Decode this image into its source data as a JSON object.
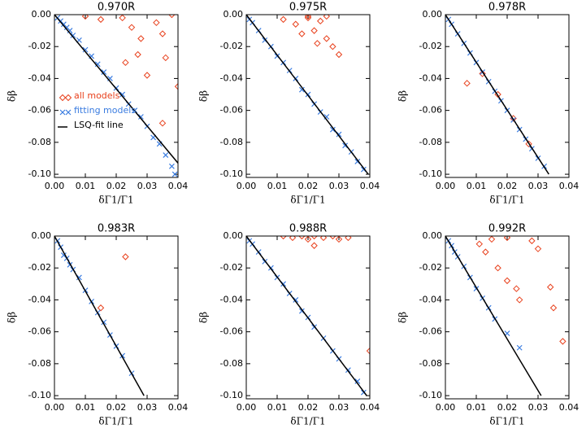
{
  "chart_data": [
    {
      "type": "scatter",
      "title": "0.970R",
      "x_label": "δΓ1/Γ1",
      "y_label": "δβ",
      "legend": "center left",
      "xlim": [
        0,
        0.04
      ],
      "ylim": [
        -0.102,
        0
      ],
      "xticks": [
        {
          "value": 0,
          "label": "0.00"
        },
        0.01,
        0.02,
        0.03,
        0.04
      ],
      "yticks": [
        {
          "value": 0,
          "label": "0.00"
        },
        -0.02,
        -0.04,
        -0.06,
        -0.08,
        {
          "value": -0.1,
          "label": "-0.10"
        }
      ],
      "series": [
        {
          "name": "all models",
          "color": "#e8401c",
          "marker": "diamond",
          "x": [
            0.01,
            0.015,
            0.022,
            0.025,
            0.028,
            0.027,
            0.03,
            0.033,
            0.035,
            0.036,
            0.038,
            0.023,
            0.035,
            0.04
          ],
          "values": [
            -0.001,
            -0.003,
            -0.002,
            -0.008,
            -0.015,
            -0.025,
            -0.038,
            -0.005,
            -0.012,
            -0.027,
            0,
            -0.03,
            -0.068,
            -0.045
          ]
        },
        {
          "name": "fitting models",
          "color": "#3a7ce0",
          "marker": "x",
          "x": [
            0.001,
            0.002,
            0.003,
            0.004,
            0.005,
            0.006,
            0.008,
            0.01,
            0.012,
            0.014,
            0.016,
            0.018,
            0.02,
            0.022,
            0.024,
            0.026,
            0.028,
            0.03,
            0.032,
            0.034,
            0.036,
            0.038,
            0.039
          ],
          "values": [
            -0.002,
            -0.004,
            -0.006,
            -0.008,
            -0.01,
            -0.013,
            -0.016,
            -0.022,
            -0.026,
            -0.031,
            -0.036,
            -0.04,
            -0.046,
            -0.05,
            -0.056,
            -0.06,
            -0.064,
            -0.07,
            -0.077,
            -0.081,
            -0.088,
            -0.095,
            -0.1
          ]
        },
        {
          "name": "LSQ-fit line",
          "color": "#000000",
          "marker": "line",
          "x": [
            0,
            0.04
          ],
          "values": [
            0,
            -0.093
          ]
        }
      ]
    },
    {
      "type": "scatter",
      "title": "0.975R",
      "x_label": "δΓ1/Γ1",
      "y_label": "δβ",
      "xlim": [
        0,
        0.04
      ],
      "ylim": [
        -0.102,
        0
      ],
      "xticks": [
        {
          "value": 0,
          "label": "0.00"
        },
        0.01,
        0.02,
        0.03,
        0.04
      ],
      "yticks": [
        {
          "value": 0,
          "label": "0.00"
        },
        -0.02,
        -0.04,
        -0.06,
        -0.08,
        {
          "value": -0.1,
          "label": "-0.10"
        }
      ],
      "series": [
        {
          "color": "#e8401c",
          "marker": "diamond",
          "x": [
            0.012,
            0.016,
            0.02,
            0.022,
            0.024,
            0.026,
            0.018,
            0.028,
            0.03,
            0.023,
            0.02,
            0.026
          ],
          "values": [
            -0.003,
            -0.006,
            -0.002,
            -0.01,
            -0.004,
            -0.015,
            -0.012,
            -0.02,
            -0.025,
            -0.018,
            -0.001,
            -0.001
          ]
        },
        {
          "color": "#3a7ce0",
          "marker": "x",
          "x": [
            0.001,
            0.002,
            0.004,
            0.006,
            0.008,
            0.01,
            0.012,
            0.014,
            0.016,
            0.018,
            0.02,
            0.022,
            0.024,
            0.026,
            0.028,
            0.03,
            0.032,
            0.034,
            0.036,
            0.038
          ],
          "values": [
            -0.003,
            -0.005,
            -0.01,
            -0.016,
            -0.02,
            -0.026,
            -0.03,
            -0.035,
            -0.04,
            -0.047,
            -0.05,
            -0.056,
            -0.061,
            -0.064,
            -0.072,
            -0.075,
            -0.082,
            -0.086,
            -0.092,
            -0.097
          ]
        },
        {
          "color": "#000000",
          "marker": "line",
          "x": [
            0,
            0.0395
          ],
          "values": [
            0,
            -0.1
          ]
        }
      ]
    },
    {
      "type": "scatter",
      "title": "0.978R",
      "x_label": "δΓ1/Γ1",
      "y_label": "δβ",
      "xlim": [
        0,
        0.04
      ],
      "ylim": [
        -0.102,
        0
      ],
      "xticks": [
        {
          "value": 0,
          "label": "0.00"
        },
        0.01,
        0.02,
        0.03,
        0.04
      ],
      "yticks": [
        {
          "value": 0,
          "label": "0.00"
        },
        -0.02,
        -0.04,
        -0.06,
        -0.08,
        {
          "value": -0.1,
          "label": "-0.10"
        }
      ],
      "series": [
        {
          "color": "#e8401c",
          "marker": "diamond",
          "x": [
            0.007,
            0.012,
            0.017,
            0.022,
            0.027
          ],
          "values": [
            -0.043,
            -0.037,
            -0.05,
            -0.065,
            -0.081
          ]
        },
        {
          "color": "#3a7ce0",
          "marker": "x",
          "x": [
            0.001,
            0.002,
            0.004,
            0.006,
            0.008,
            0.01,
            0.012,
            0.014,
            0.016,
            0.018,
            0.02,
            0.022,
            0.024,
            0.026,
            0.028,
            0.03,
            0.032
          ],
          "values": [
            -0.003,
            -0.006,
            -0.012,
            -0.018,
            -0.024,
            -0.03,
            -0.036,
            -0.042,
            -0.048,
            -0.054,
            -0.06,
            -0.066,
            -0.072,
            -0.078,
            -0.084,
            -0.09,
            -0.095
          ]
        },
        {
          "color": "#000000",
          "marker": "line",
          "x": [
            0,
            0.0335
          ],
          "values": [
            0,
            -0.1
          ]
        }
      ]
    },
    {
      "type": "scatter",
      "title": "0.983R",
      "x_label": "δΓ1/Γ1",
      "y_label": "δβ",
      "xlim": [
        0,
        0.04
      ],
      "ylim": [
        -0.102,
        0
      ],
      "xticks": [
        {
          "value": 0,
          "label": "0.00"
        },
        0.01,
        0.02,
        0.03,
        0.04
      ],
      "yticks": [
        {
          "value": 0,
          "label": "0.00"
        },
        -0.02,
        -0.04,
        -0.06,
        -0.08,
        {
          "value": -0.1,
          "label": "-0.10"
        }
      ],
      "series": [
        {
          "color": "#e8401c",
          "marker": "diamond",
          "x": [
            0.023,
            0.015
          ],
          "values": [
            -0.013,
            -0.045
          ]
        },
        {
          "color": "#3a7ce0",
          "marker": "x",
          "x": [
            0.001,
            0.002,
            0.003,
            0.004,
            0.005,
            0.006,
            0.008,
            0.01,
            0.012,
            0.014,
            0.016,
            0.018,
            0.02,
            0.022,
            0.025
          ],
          "values": [
            -0.003,
            -0.007,
            -0.012,
            -0.014,
            -0.018,
            -0.021,
            -0.026,
            -0.034,
            -0.041,
            -0.048,
            -0.054,
            -0.062,
            -0.069,
            -0.075,
            -0.086
          ]
        },
        {
          "color": "#000000",
          "marker": "line",
          "x": [
            0,
            0.029
          ],
          "values": [
            0,
            -0.1
          ]
        }
      ]
    },
    {
      "type": "scatter",
      "title": "0.988R",
      "x_label": "δΓ1/Γ1",
      "y_label": "δβ",
      "xlim": [
        0,
        0.04
      ],
      "ylim": [
        -0.102,
        0
      ],
      "xticks": [
        {
          "value": 0,
          "label": "0.00"
        },
        0.01,
        0.02,
        0.03,
        0.04
      ],
      "yticks": [
        {
          "value": 0,
          "label": "0.00"
        },
        -0.02,
        -0.04,
        -0.06,
        -0.08,
        {
          "value": -0.1,
          "label": "-0.10"
        }
      ],
      "series": [
        {
          "color": "#e8401c",
          "marker": "diamond",
          "x": [
            0.012,
            0.015,
            0.018,
            0.02,
            0.022,
            0.025,
            0.028,
            0.03,
            0.033,
            0.04,
            0.022
          ],
          "values": [
            0,
            -0.001,
            0,
            -0.002,
            0,
            -0.001,
            0,
            -0.002,
            -0.001,
            -0.072,
            -0.006
          ]
        },
        {
          "color": "#3a7ce0",
          "marker": "x",
          "x": [
            0.001,
            0.002,
            0.004,
            0.006,
            0.008,
            0.01,
            0.012,
            0.014,
            0.016,
            0.018,
            0.02,
            0.022,
            0.025,
            0.028,
            0.03,
            0.033,
            0.036,
            0.038
          ],
          "values": [
            -0.003,
            -0.005,
            -0.01,
            -0.016,
            -0.02,
            -0.026,
            -0.03,
            -0.036,
            -0.04,
            -0.047,
            -0.051,
            -0.057,
            -0.064,
            -0.072,
            -0.077,
            -0.084,
            -0.091,
            -0.098
          ]
        },
        {
          "color": "#000000",
          "marker": "line",
          "x": [
            0,
            0.039
          ],
          "values": [
            0,
            -0.1
          ]
        }
      ]
    },
    {
      "type": "scatter",
      "title": "0.992R",
      "x_label": "δΓ1/Γ1",
      "y_label": "δβ",
      "xlim": [
        0,
        0.04
      ],
      "ylim": [
        -0.102,
        0
      ],
      "xticks": [
        {
          "value": 0,
          "label": "0.00"
        },
        0.01,
        0.02,
        0.03,
        0.04
      ],
      "yticks": [
        {
          "value": 0,
          "label": "0.00"
        },
        -0.02,
        -0.04,
        -0.06,
        -0.08,
        {
          "value": -0.1,
          "label": "-0.10"
        }
      ],
      "series": [
        {
          "color": "#e8401c",
          "marker": "diamond",
          "x": [
            0.011,
            0.013,
            0.015,
            0.017,
            0.02,
            0.023,
            0.028,
            0.03,
            0.034,
            0.035,
            0.038,
            0.024,
            0.02
          ],
          "values": [
            -0.005,
            -0.01,
            -0.002,
            -0.02,
            -0.028,
            -0.033,
            -0.003,
            -0.008,
            -0.032,
            -0.045,
            -0.066,
            -0.04,
            -0.001
          ]
        },
        {
          "color": "#3a7ce0",
          "marker": "x",
          "x": [
            0.001,
            0.002,
            0.003,
            0.004,
            0.006,
            0.008,
            0.01,
            0.012,
            0.014,
            0.016,
            0.02,
            0.024
          ],
          "values": [
            -0.003,
            -0.006,
            -0.01,
            -0.013,
            -0.019,
            -0.026,
            -0.033,
            -0.039,
            -0.045,
            -0.052,
            -0.061,
            -0.07
          ]
        },
        {
          "color": "#000000",
          "marker": "line",
          "x": [
            0,
            0.031
          ],
          "values": [
            0,
            -0.1
          ]
        }
      ]
    }
  ]
}
